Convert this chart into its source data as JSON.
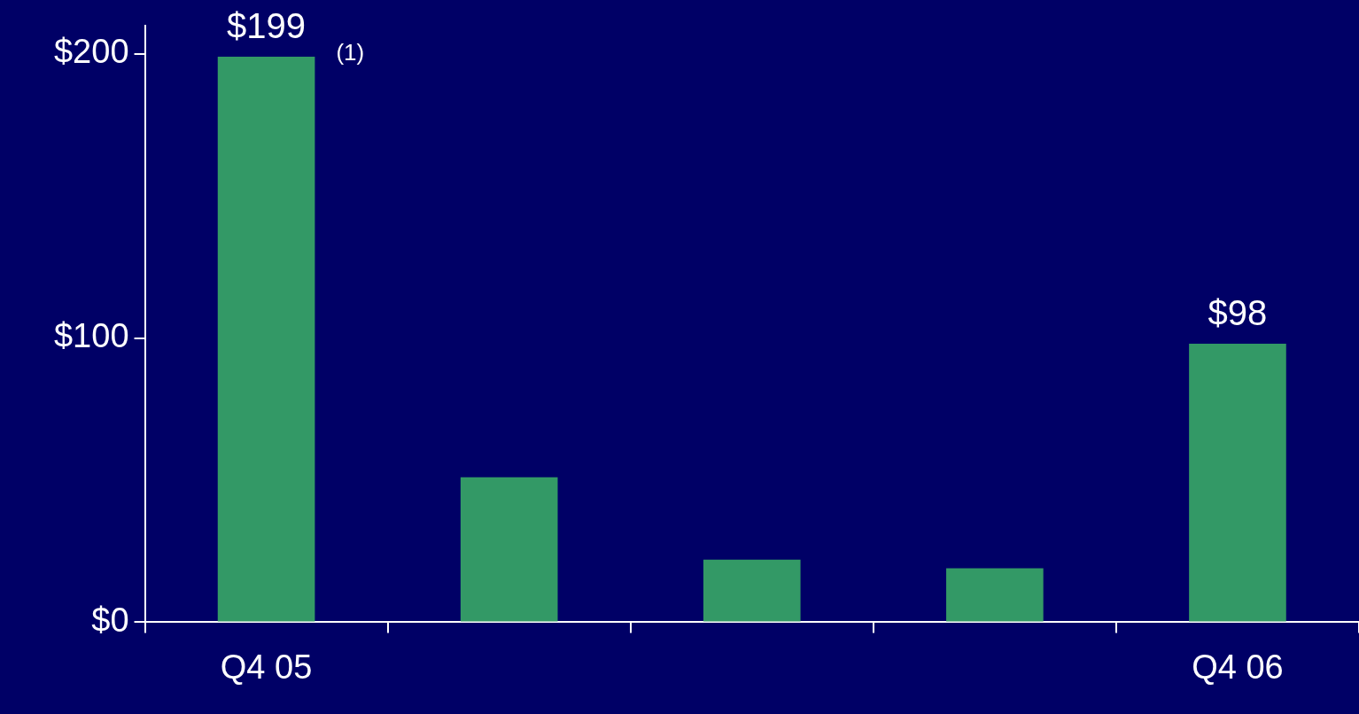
{
  "chart_data": {
    "type": "bar",
    "categories": [
      "Q4 05",
      null,
      null,
      null,
      "Q4 06"
    ],
    "values": [
      199,
      51,
      22,
      19,
      98
    ],
    "value_labels": [
      "$199",
      null,
      null,
      null,
      "$98"
    ],
    "color": "#339966",
    "ylim": [
      0,
      210
    ],
    "yticks": [
      {
        "value": 0,
        "label": "$0"
      },
      {
        "value": 100,
        "label": "$100"
      },
      {
        "value": 200,
        "label": "$200"
      }
    ],
    "annotations": [
      "(1)"
    ]
  }
}
